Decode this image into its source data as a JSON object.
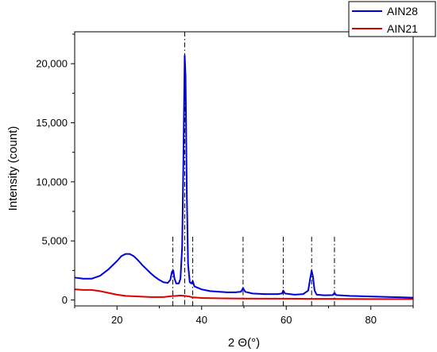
{
  "chart_data": {
    "type": "line",
    "xlabel": "2 Θ(°)",
    "ylabel": "Intensity (count)",
    "xlim": [
      10,
      90
    ],
    "ylim": [
      -500,
      22700
    ],
    "x_ticks": [
      20,
      40,
      60,
      80
    ],
    "y_ticks": [
      0,
      5000,
      10000,
      15000,
      20000
    ],
    "y_tick_labels": [
      "0",
      "5,000",
      "10,000",
      "15,000",
      "20,000"
    ],
    "grid": false,
    "legend_position": "top-right",
    "reference_lines_x": [
      33.2,
      36.0,
      37.9,
      49.8,
      59.3,
      66.0,
      71.4
    ],
    "series": [
      {
        "name": "AIN28",
        "color": "#0000dd",
        "points": [
          [
            10,
            1900
          ],
          [
            12,
            1800
          ],
          [
            14,
            1800
          ],
          [
            16,
            2050
          ],
          [
            18,
            2600
          ],
          [
            20,
            3300
          ],
          [
            21,
            3700
          ],
          [
            22,
            3900
          ],
          [
            23,
            3900
          ],
          [
            24,
            3700
          ],
          [
            25,
            3350
          ],
          [
            26,
            2950
          ],
          [
            27,
            2600
          ],
          [
            28,
            2250
          ],
          [
            29,
            1950
          ],
          [
            30,
            1700
          ],
          [
            31,
            1500
          ],
          [
            32,
            1450
          ],
          [
            32.6,
            1700
          ],
          [
            33.0,
            2400
          ],
          [
            33.3,
            2500
          ],
          [
            33.6,
            1800
          ],
          [
            34.0,
            1400
          ],
          [
            34.6,
            1400
          ],
          [
            35.0,
            1800
          ],
          [
            35.4,
            4500
          ],
          [
            35.7,
            12000
          ],
          [
            36.0,
            20700
          ],
          [
            36.2,
            19000
          ],
          [
            36.5,
            9000
          ],
          [
            36.8,
            3000
          ],
          [
            37.2,
            1500
          ],
          [
            37.6,
            1400
          ],
          [
            37.9,
            1600
          ],
          [
            38.3,
            1150
          ],
          [
            40,
            900
          ],
          [
            42,
            750
          ],
          [
            44,
            700
          ],
          [
            46,
            650
          ],
          [
            48,
            650
          ],
          [
            49.3,
            700
          ],
          [
            49.8,
            1000
          ],
          [
            50.3,
            700
          ],
          [
            52,
            550
          ],
          [
            55,
            500
          ],
          [
            58,
            500
          ],
          [
            59.0,
            550
          ],
          [
            59.3,
            800
          ],
          [
            59.7,
            550
          ],
          [
            62,
            450
          ],
          [
            64,
            500
          ],
          [
            65.2,
            800
          ],
          [
            65.6,
            1700
          ],
          [
            66.0,
            2500
          ],
          [
            66.3,
            2000
          ],
          [
            66.7,
            800
          ],
          [
            67.2,
            450
          ],
          [
            69,
            400
          ],
          [
            71.0,
            420
          ],
          [
            71.4,
            600
          ],
          [
            71.8,
            420
          ],
          [
            75,
            350
          ],
          [
            80,
            300
          ],
          [
            85,
            250
          ],
          [
            90,
            200
          ]
        ]
      },
      {
        "name": "AIN21",
        "color": "#dd0000",
        "points": [
          [
            10,
            900
          ],
          [
            12,
            850
          ],
          [
            14,
            850
          ],
          [
            16,
            750
          ],
          [
            18,
            600
          ],
          [
            20,
            450
          ],
          [
            22,
            350
          ],
          [
            25,
            300
          ],
          [
            28,
            250
          ],
          [
            31,
            250
          ],
          [
            33,
            330
          ],
          [
            34,
            350
          ],
          [
            35,
            380
          ],
          [
            36,
            350
          ],
          [
            37,
            300
          ],
          [
            38,
            220
          ],
          [
            40,
            170
          ],
          [
            45,
            140
          ],
          [
            50,
            120
          ],
          [
            55,
            110
          ],
          [
            60,
            110
          ],
          [
            65,
            100
          ],
          [
            70,
            100
          ],
          [
            75,
            90
          ],
          [
            80,
            80
          ],
          [
            85,
            80
          ],
          [
            90,
            80
          ]
        ]
      }
    ]
  }
}
